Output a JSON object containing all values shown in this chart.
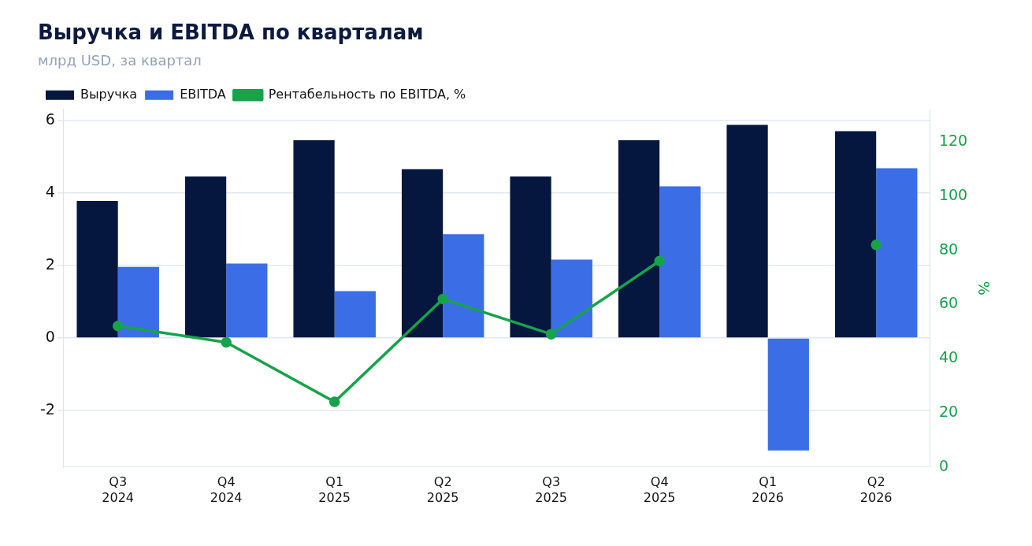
{
  "chart_data": {
    "type": "bar",
    "title": "Выручка и EBITDA по кварталам",
    "subtitle": "млрд USD, за квартал",
    "y2label": "%",
    "categories": [
      "Q3\n2024",
      "Q4\n2024",
      "Q1\n2025",
      "Q2\n2025",
      "Q3\n2025",
      "Q4\n2025",
      "Q1\n2026",
      "Q2\n2026"
    ],
    "series": [
      {
        "name": "Выручка",
        "color": "#05173f",
        "values": [
          3.78,
          4.45,
          5.45,
          4.65,
          4.45,
          5.45,
          5.87,
          5.7
        ]
      },
      {
        "name": "EBITDA",
        "color": "#3b6ee6",
        "values": [
          1.96,
          2.05,
          1.29,
          2.86,
          2.16,
          4.18,
          -3.1,
          4.68
        ]
      },
      {
        "name": "Рентабельность по EBITDA, %",
        "type": "line",
        "axis": "y2",
        "color": "#16a34a",
        "marker": "circle",
        "values": [
          52,
          46,
          24,
          62,
          49,
          76,
          null,
          82
        ]
      }
    ],
    "ylim": [
      -3.55,
      6.3
    ],
    "yticks": [
      -2,
      0,
      2,
      4,
      6
    ],
    "y2lim": [
      0,
      132
    ],
    "y2ticks": [
      0,
      20,
      40,
      60,
      80,
      100,
      120
    ],
    "grid": "y",
    "legend": "top left"
  }
}
